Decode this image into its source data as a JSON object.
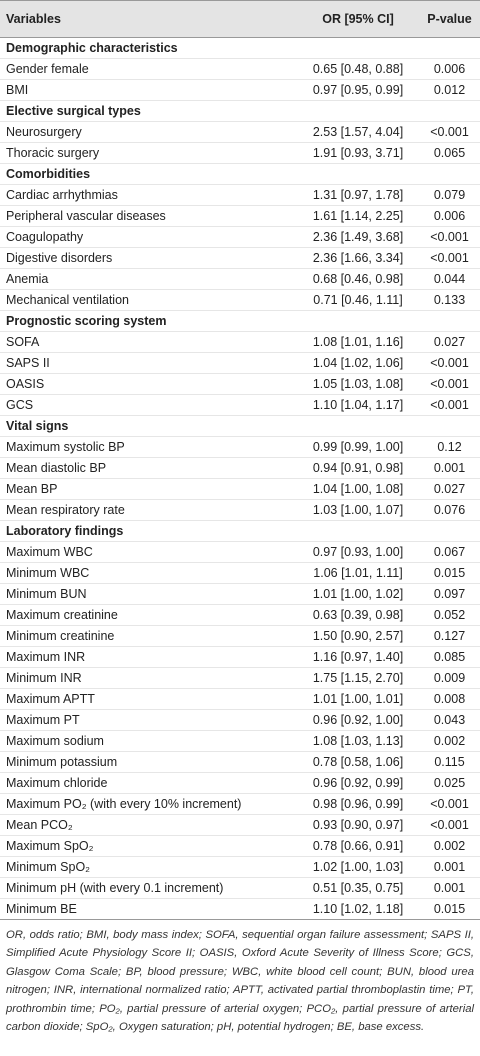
{
  "table": {
    "header": [
      "Variables",
      "OR [95% CI]",
      "P-value"
    ],
    "sections": [
      {
        "title": "Demographic characteristics",
        "rows": [
          [
            "Gender female",
            "0.65 [0.48, 0.88]",
            "0.006"
          ],
          [
            "BMI",
            "0.97 [0.95, 0.99]",
            "0.012"
          ]
        ]
      },
      {
        "title": "Elective surgical types",
        "rows": [
          [
            "Neurosurgery",
            "2.53 [1.57, 4.04]",
            "<0.001"
          ],
          [
            "Thoracic surgery",
            "1.91 [0.93, 3.71]",
            "0.065"
          ]
        ]
      },
      {
        "title": "Comorbidities",
        "rows": [
          [
            "Cardiac arrhythmias",
            "1.31 [0.97, 1.78]",
            "0.079"
          ],
          [
            "Peripheral vascular diseases",
            "1.61 [1.14, 2.25]",
            "0.006"
          ],
          [
            "Coagulopathy",
            "2.36 [1.49, 3.68]",
            "<0.001"
          ],
          [
            "Digestive disorders",
            "2.36 [1.66, 3.34]",
            "<0.001"
          ],
          [
            "Anemia",
            "0.68 [0.46, 0.98]",
            "0.044"
          ],
          [
            "Mechanical ventilation",
            "0.71 [0.46, 1.11]",
            "0.133"
          ]
        ]
      },
      {
        "title": "Prognostic scoring system",
        "rows": [
          [
            "SOFA",
            "1.08 [1.01, 1.16]",
            "0.027"
          ],
          [
            "SAPS II",
            "1.04 [1.02, 1.06]",
            "<0.001"
          ],
          [
            "OASIS",
            "1.05 [1.03, 1.08]",
            "<0.001"
          ],
          [
            "GCS",
            "1.10 [1.04, 1.17]",
            "<0.001"
          ]
        ]
      },
      {
        "title": "Vital signs",
        "rows": [
          [
            "Maximum systolic BP",
            "0.99 [0.99, 1.00]",
            "0.12"
          ],
          [
            "Mean diastolic BP",
            "0.94 [0.91, 0.98]",
            "0.001"
          ],
          [
            "Mean BP",
            "1.04 [1.00, 1.08]",
            "0.027"
          ],
          [
            "Mean respiratory rate",
            "1.03 [1.00, 1.07]",
            "0.076"
          ]
        ]
      },
      {
        "title": "Laboratory findings",
        "rows": [
          [
            "Maximum WBC",
            "0.97 [0.93, 1.00]",
            "0.067"
          ],
          [
            "Minimum WBC",
            "1.06 [1.01, 1.11]",
            "0.015"
          ],
          [
            "Minimum BUN",
            "1.01 [1.00, 1.02]",
            "0.097"
          ],
          [
            "Maximum creatinine",
            "0.63 [0.39, 0.98]",
            "0.052"
          ],
          [
            "Minimum creatinine",
            "1.50 [0.90, 2.57]",
            "0.127"
          ],
          [
            "Maximum INR",
            "1.16 [0.97, 1.40]",
            "0.085"
          ],
          [
            "Minimum INR",
            "1.75 [1.15, 2.70]",
            "0.009"
          ],
          [
            "Maximum APTT",
            "1.01 [1.00, 1.01]",
            "0.008"
          ],
          [
            "Maximum PT",
            "0.96 [0.92, 1.00]",
            "0.043"
          ],
          [
            "Maximum sodium",
            "1.08 [1.03, 1.13]",
            "0.002"
          ],
          [
            "Minimum potassium",
            "0.78 [0.58, 1.06]",
            "0.115"
          ],
          [
            "Maximum chloride",
            "0.96 [0.92, 0.99]",
            "0.025"
          ],
          [
            "Maximum PO₂ (with every 10% increment)",
            "0.98 [0.96, 0.99]",
            "<0.001"
          ],
          [
            "Mean PCO₂",
            "0.93 [0.90, 0.97]",
            "<0.001"
          ],
          [
            "Maximum SpO₂",
            "0.78 [0.66, 0.91]",
            "0.002"
          ],
          [
            "Minimum SpO₂",
            "1.02 [1.00, 1.03]",
            "0.001"
          ],
          [
            "Minimum pH (with every 0.1 increment)",
            "0.51 [0.35, 0.75]",
            "0.001"
          ],
          [
            "Minimum BE",
            "1.10 [1.02, 1.18]",
            "0.015"
          ]
        ]
      }
    ]
  },
  "footnote": "OR, odds ratio; BMI, body mass index; SOFA, sequential organ failure assessment; SAPS II, Simplified Acute Physiology Score II; OASIS, Oxford Acute Severity of Illness Score; GCS, Glasgow Coma Scale; BP, blood pressure; WBC, white blood cell count; BUN, blood urea nitrogen; INR, international normalized ratio; APTT, activated partial thromboplastin time; PT, prothrombin time; PO₂, partial pressure of arterial oxygen; PCO₂, partial pressure of arterial carbon dioxide; SpO₂, Oxygen saturation; pH, potential hydrogen; BE, base excess."
}
